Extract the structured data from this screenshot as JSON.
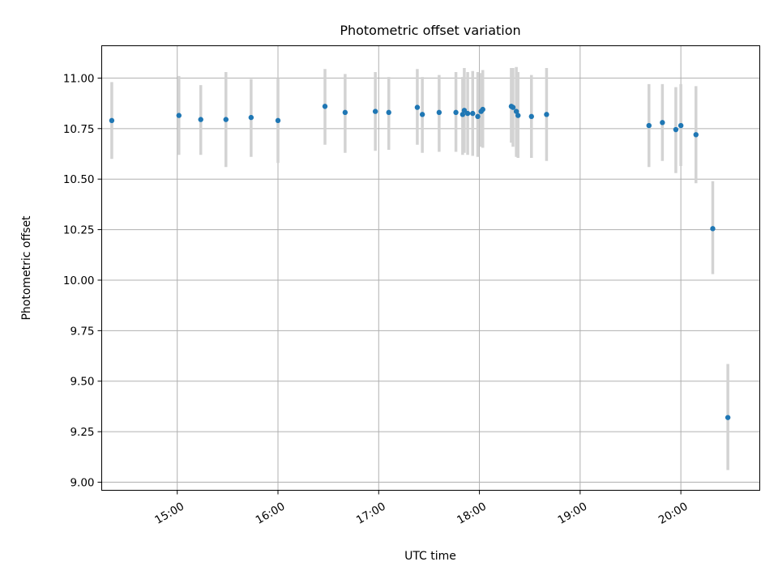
{
  "chart_data": {
    "type": "scatter",
    "title": "Photometric offset variation",
    "xlabel": "UTC time",
    "ylabel": "Photometric offset",
    "x_axis": "time",
    "xlim": [
      "14:15",
      "20:47"
    ],
    "ylim": [
      8.96,
      11.16
    ],
    "x_ticks": [
      "15:00",
      "16:00",
      "17:00",
      "18:00",
      "19:00",
      "20:00"
    ],
    "y_ticks": [
      9.0,
      9.25,
      9.5,
      9.75,
      10.0,
      10.25,
      10.5,
      10.75,
      11.0
    ],
    "y_tick_labels": [
      "9.00",
      "9.25",
      "9.50",
      "9.75",
      "10.00",
      "10.25",
      "10.50",
      "10.75",
      "11.00"
    ],
    "grid": true,
    "colors": {
      "points": "#1f77b4",
      "error_bars": "#d3d3d3",
      "grid": "#b0b0b0"
    },
    "series": [
      {
        "x": [
          "14:21",
          "15:01",
          "15:14",
          "15:29",
          "15:44",
          "16:00",
          "16:28",
          "16:40",
          "16:58",
          "17:06",
          "17:23",
          "17:26",
          "17:36",
          "17:46",
          "17:50",
          "17:51",
          "17:53",
          "17:56",
          "17:59",
          "18:01",
          "18:02",
          "18:19",
          "18:20",
          "18:22",
          "18:23",
          "18:31",
          "18:40",
          "19:41",
          "19:49",
          "19:57",
          "20:00",
          "20:09",
          "20:19",
          "20:28"
        ],
        "y": [
          10.79,
          10.815,
          10.795,
          10.795,
          10.805,
          10.79,
          10.86,
          10.83,
          10.835,
          10.83,
          10.855,
          10.82,
          10.83,
          10.83,
          10.82,
          10.84,
          10.825,
          10.825,
          10.81,
          10.835,
          10.845,
          10.86,
          10.855,
          10.835,
          10.815,
          10.81,
          10.82,
          10.765,
          10.78,
          10.745,
          10.765,
          10.72,
          10.255,
          9.32
        ],
        "y_lower": [
          10.6,
          10.62,
          10.62,
          10.56,
          10.61,
          10.58,
          10.67,
          10.63,
          10.64,
          10.645,
          10.67,
          10.63,
          10.635,
          10.635,
          10.62,
          10.63,
          10.62,
          10.615,
          10.61,
          10.66,
          10.655,
          10.68,
          10.66,
          10.61,
          10.605,
          10.605,
          10.59,
          10.56,
          10.59,
          10.53,
          10.565,
          10.48,
          10.03,
          9.06
        ],
        "y_upper": [
          10.98,
          11.01,
          10.965,
          11.03,
          10.995,
          11.0,
          11.045,
          11.02,
          11.03,
          11.005,
          11.045,
          11.005,
          11.015,
          11.03,
          11.005,
          11.05,
          11.03,
          11.035,
          11.03,
          11.025,
          11.04,
          11.05,
          11.05,
          11.055,
          11.03,
          11.015,
          11.05,
          10.97,
          10.97,
          10.955,
          10.97,
          10.96,
          10.49,
          9.585
        ]
      }
    ]
  }
}
